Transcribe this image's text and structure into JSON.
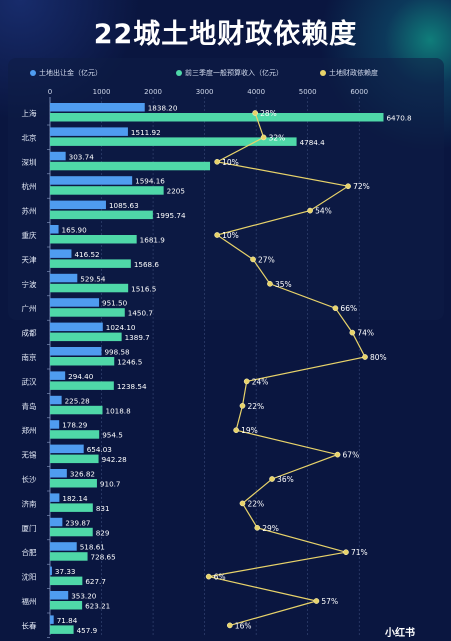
{
  "title": "22城土地财政依赖度",
  "watermark": "小红书",
  "colors": {
    "land": "#4f9cf0",
    "budget": "#4fd8a8",
    "ratio": "#e8d36a",
    "grid": "#3a4a78",
    "axis_text": "#cfd7ea"
  },
  "chart_data": {
    "type": "bar",
    "title": "22城土地财政依赖度",
    "legend_position": "top",
    "xlim": [
      0,
      6500
    ],
    "x_ticks": [
      0,
      1000,
      2000,
      3000,
      4000,
      5000,
      6000
    ],
    "categories": [
      "上海",
      "北京",
      "深圳",
      "杭州",
      "苏州",
      "重庆",
      "天津",
      "宁波",
      "广州",
      "成都",
      "南京",
      "武汉",
      "青岛",
      "郑州",
      "无锡",
      "长沙",
      "济南",
      "厦门",
      "合肥",
      "沈阳",
      "福州",
      "长春"
    ],
    "series": [
      {
        "name": "土地出让金（亿元）",
        "type": "bar",
        "values": [
          1838.2,
          1511.92,
          303.74,
          1594.16,
          1085.63,
          165.9,
          416.52,
          529.54,
          951.5,
          1024.1,
          998.58,
          294.4,
          225.28,
          178.29,
          654.03,
          326.82,
          182.14,
          239.87,
          518.61,
          37.33,
          353.2,
          71.84
        ],
        "labels": [
          "1838.20",
          "1511.92",
          "303.74",
          "1594.16",
          "1085.63",
          "165.90",
          "416.52",
          "529.54",
          "951.50",
          "1024.10",
          "998.58",
          "294.40",
          "225.28",
          "178.29",
          "654.03",
          "326.82",
          "182.14",
          "239.87",
          "518.61",
          "37.33",
          "353.20",
          "71.84"
        ]
      },
      {
        "name": "前三季度一般预算收入（亿元）",
        "type": "bar",
        "values": [
          6470.8,
          4784.4,
          3105,
          2205,
          1995.74,
          1681.9,
          1568.6,
          1516.5,
          1450.7,
          1389.7,
          1246.5,
          1238.54,
          1018.8,
          954.5,
          942.28,
          910.7,
          831,
          829,
          728.65,
          627.7,
          623.21,
          457.9
        ],
        "labels": [
          "6470.8",
          "4784.4",
          "",
          "2205",
          "1995.74",
          "1681.9",
          "1568.6",
          "1516.5",
          "1450.7",
          "1389.7",
          "1246.5",
          "1238.54",
          "1018.8",
          "954.5",
          "942.28",
          "910.7",
          "831",
          "829",
          "728.65",
          "627.7",
          "623.21",
          "457.9"
        ]
      },
      {
        "name": "土地财政依赖度",
        "type": "line",
        "values": [
          28,
          32,
          10,
          72,
          54,
          10,
          27,
          35,
          66,
          74,
          80,
          24,
          22,
          19,
          67,
          36,
          22,
          29,
          71,
          6,
          57,
          16
        ],
        "labels": [
          "28%",
          "32%",
          "10%",
          "72%",
          "54%",
          "10%",
          "27%",
          "35%",
          "66%",
          "74%",
          "80%",
          "24%",
          "22%",
          "19%",
          "67%",
          "36%",
          "22%",
          "29%",
          "71%",
          "6%",
          "57%",
          "16%"
        ]
      }
    ]
  }
}
